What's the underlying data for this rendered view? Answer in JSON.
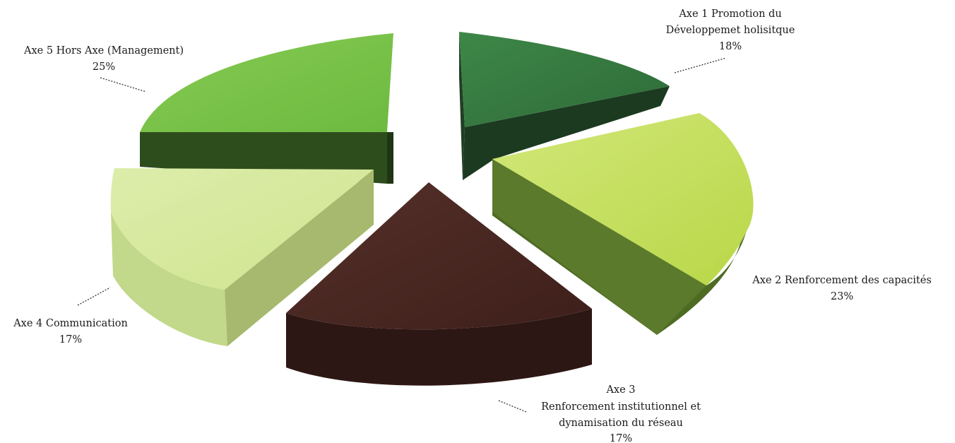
{
  "chart_data": {
    "type": "pie",
    "variant": "3d-exploded",
    "title": "",
    "legend": "none",
    "slices": [
      {
        "label_lines": [
          "Axe 1 Promotion du",
          "Développemet holisitque"
        ],
        "value_label": "18%",
        "value": 18,
        "color": "#3a7e44"
      },
      {
        "label_lines": [
          "Axe 2 Renforcement des capacités"
        ],
        "value_label": "23%",
        "value": 23,
        "color": "#c3dd5c"
      },
      {
        "label_lines": [
          "Axe 3",
          "Renforcement institutionnel et",
          "dynamisation du réseau"
        ],
        "value_label": "17%",
        "value": 17,
        "color": "#4c2620"
      },
      {
        "label_lines": [
          "Axe 4 Communication"
        ],
        "value_label": "17%",
        "value": 17,
        "color": "#d6e99b"
      },
      {
        "label_lines": [
          "Axe 5 Hors Axe (Management)"
        ],
        "value_label": "25%",
        "value": 25,
        "color": "#7dc44a"
      }
    ]
  }
}
